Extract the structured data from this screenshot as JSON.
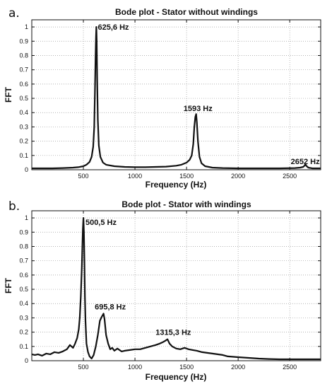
{
  "chart_data": [
    {
      "type": "line",
      "panel_label": "a.",
      "title": "Bode plot - Stator without windings",
      "xlabel": "Frequency (Hz)",
      "ylabel": "FFT",
      "xlim": [
        0,
        2800
      ],
      "ylim": [
        0,
        1.05
      ],
      "xticks": [
        500,
        1000,
        1500,
        2000,
        2500
      ],
      "yticks": [
        0,
        0.1,
        0.2,
        0.3,
        0.4,
        0.5,
        0.6,
        0.7,
        0.8,
        0.9,
        1
      ],
      "ytick_labels": [
        "0",
        "0.1",
        "0.2",
        "0.3",
        "0.4",
        "0.5",
        "0.6",
        "0.7",
        "0.8",
        "0.9",
        "1"
      ],
      "grid": true,
      "series": [
        {
          "x": [
            0,
            100,
            200,
            300,
            400,
            450,
            500,
            530,
            560,
            580,
            595,
            605,
            612,
            618,
            622,
            625.6,
            629,
            633,
            640,
            650,
            665,
            690,
            720,
            800,
            900,
            1000,
            1100,
            1200,
            1300,
            1400,
            1450,
            1500,
            1530,
            1550,
            1565,
            1575,
            1585,
            1593,
            1600,
            1610,
            1625,
            1645,
            1680,
            1750,
            1850,
            2000,
            2200,
            2400,
            2550,
            2600,
            2630,
            2645,
            2652,
            2660,
            2680,
            2720,
            2800
          ],
          "y": [
            0.01,
            0.01,
            0.01,
            0.012,
            0.015,
            0.018,
            0.025,
            0.035,
            0.055,
            0.09,
            0.16,
            0.3,
            0.55,
            0.8,
            0.93,
            1.0,
            0.9,
            0.65,
            0.35,
            0.17,
            0.09,
            0.05,
            0.035,
            0.025,
            0.02,
            0.018,
            0.018,
            0.02,
            0.022,
            0.028,
            0.035,
            0.05,
            0.07,
            0.1,
            0.18,
            0.3,
            0.37,
            0.39,
            0.33,
            0.2,
            0.09,
            0.045,
            0.025,
            0.015,
            0.012,
            0.01,
            0.01,
            0.01,
            0.012,
            0.015,
            0.02,
            0.03,
            0.04,
            0.028,
            0.015,
            0.01,
            0.01
          ]
        }
      ],
      "annotations": [
        {
          "text": "625,6 Hz",
          "x": 640,
          "y": 1.0
        },
        {
          "text": "1593 Hz",
          "x": 1470,
          "y": 0.43
        },
        {
          "text": "2652 Hz",
          "x": 2510,
          "y": 0.06
        }
      ]
    },
    {
      "type": "line",
      "panel_label": "b.",
      "title": "Bode plot - Stator with windings",
      "xlabel": "Frequency (Hz)",
      "ylabel": "FFT",
      "xlim": [
        0,
        2800
      ],
      "ylim": [
        0,
        1.05
      ],
      "xticks": [
        500,
        1000,
        1500,
        2000,
        2500
      ],
      "yticks": [
        0,
        0.1,
        0.2,
        0.3,
        0.4,
        0.5,
        0.6,
        0.7,
        0.8,
        0.9,
        1
      ],
      "ytick_labels": [
        "0",
        "0.1",
        "0.2",
        "0.3",
        "0.4",
        "0.5",
        "0.6",
        "0.7",
        "0.8",
        "0.9",
        "1"
      ],
      "grid": true,
      "series": [
        {
          "x": [
            0,
            30,
            60,
            100,
            140,
            180,
            220,
            260,
            300,
            340,
            370,
            400,
            420,
            440,
            455,
            465,
            475,
            485,
            490,
            495,
            500.5,
            505,
            510,
            515,
            520,
            530,
            545,
            560,
            580,
            600,
            620,
            640,
            660,
            680,
            695.8,
            705,
            720,
            740,
            760,
            780,
            800,
            830,
            870,
            900,
            950,
            1000,
            1050,
            1100,
            1150,
            1200,
            1240,
            1270,
            1295,
            1315.3,
            1335,
            1360,
            1400,
            1440,
            1480,
            1520,
            1560,
            1600,
            1650,
            1700,
            1750,
            1800,
            1850,
            1900,
            2000,
            2100,
            2200,
            2300,
            2400,
            2500,
            2600,
            2700,
            2800
          ],
          "y": [
            0.045,
            0.04,
            0.045,
            0.035,
            0.05,
            0.045,
            0.06,
            0.055,
            0.065,
            0.08,
            0.11,
            0.09,
            0.12,
            0.16,
            0.22,
            0.3,
            0.45,
            0.65,
            0.8,
            0.92,
            1.0,
            0.9,
            0.7,
            0.45,
            0.28,
            0.12,
            0.06,
            0.03,
            0.015,
            0.04,
            0.1,
            0.18,
            0.28,
            0.31,
            0.33,
            0.29,
            0.18,
            0.12,
            0.08,
            0.09,
            0.07,
            0.085,
            0.065,
            0.07,
            0.075,
            0.08,
            0.08,
            0.09,
            0.1,
            0.11,
            0.12,
            0.13,
            0.14,
            0.15,
            0.12,
            0.1,
            0.085,
            0.08,
            0.09,
            0.08,
            0.075,
            0.07,
            0.06,
            0.055,
            0.05,
            0.045,
            0.04,
            0.03,
            0.025,
            0.02,
            0.015,
            0.012,
            0.01,
            0.01,
            0.01,
            0.01,
            0.01
          ]
        }
      ],
      "annotations": [
        {
          "text": "500,5 Hz",
          "x": 520,
          "y": 0.97
        },
        {
          "text": "695,8 Hz",
          "x": 610,
          "y": 0.38
        },
        {
          "text": "1315,3 Hz",
          "x": 1200,
          "y": 0.2
        }
      ]
    }
  ]
}
